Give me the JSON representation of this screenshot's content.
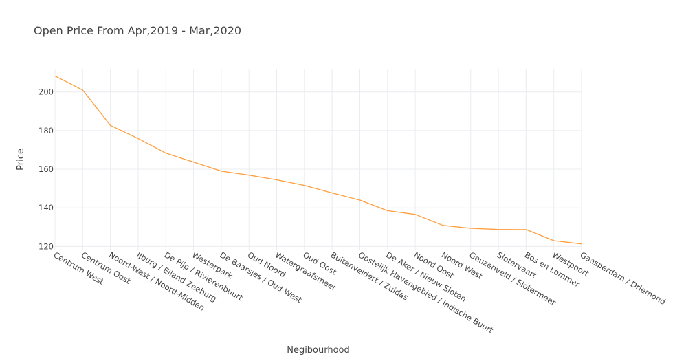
{
  "chart_data": {
    "type": "line",
    "title": "Open Price From Apr,2019 - Mar,2020",
    "xlabel": "Negibourhood",
    "ylabel": "Price",
    "categories": [
      "Centrum West",
      "Centrum Oost",
      "Noord-West / Noord-Midden",
      "IJburg / Eiland Zeeburg",
      "De Pijp / Rivierenbuurt",
      "Westerpark",
      "De Baarsjes / Oud West",
      "Oud Noord",
      "Watergraafsmeer",
      "Oud Oost",
      "Buitenveldert / Zuidas",
      "Oostelijk Havengebied / Indische Buurt",
      "De Aker / Nieuw Sloten",
      "Noord Oost",
      "Noord West",
      "Geuzenveld / Slotermeer",
      "Slotervaart",
      "Bos en Lommer",
      "Westpoort",
      "Gaasperdam / Driemond"
    ],
    "series": [
      {
        "values": [
          208.3,
          201.0,
          182.7,
          175.9,
          168.3,
          163.7,
          159.0,
          156.9,
          154.5,
          151.6,
          147.7,
          144.0,
          138.5,
          136.6,
          130.9,
          129.4,
          128.8,
          128.7,
          123.0,
          121.3
        ]
      }
    ],
    "yticks": [
      120,
      140,
      160,
      180,
      200
    ],
    "ylim": [
      118,
      212
    ],
    "grid": true,
    "line_color": "#ff9d3b"
  }
}
